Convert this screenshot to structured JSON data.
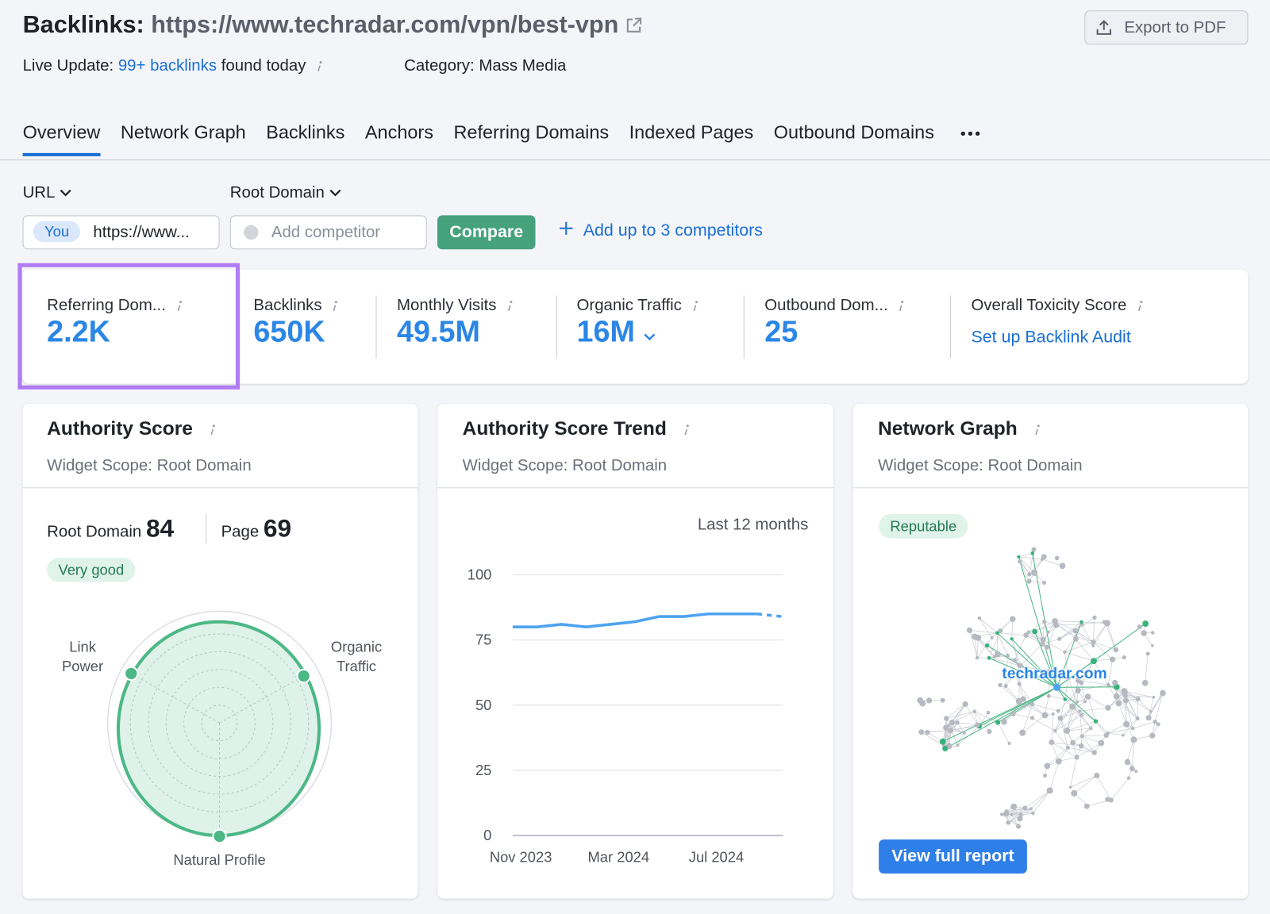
{
  "header": {
    "title": "Backlinks:",
    "url": "https://www.techradar.com/vpn/best-vpn",
    "export_button": "Export to PDF"
  },
  "live_update": {
    "label": "Live Update:",
    "link": "99+ backlinks",
    "text": "found today",
    "category": "Category: Mass Media"
  },
  "tabs": [
    "Overview",
    "Network Graph",
    "Backlinks",
    "Anchors",
    "Referring Domains",
    "Indexed Pages",
    "Outbound Domains"
  ],
  "filters": {
    "url_dropdown": "URL",
    "domain_dropdown": "Root Domain",
    "you_badge": "You",
    "you_url": "https://www...",
    "competitor_placeholder": "Add competitor",
    "compare_button": "Compare",
    "add_competitors": "Add up to 3 competitors"
  },
  "metrics": [
    {
      "label": "Referring Dom...",
      "value": "2.2K"
    },
    {
      "label": "Backlinks",
      "value": "650K"
    },
    {
      "label": "Monthly Visits",
      "value": "49.5M"
    },
    {
      "label": "Organic Traffic",
      "value": "16M"
    },
    {
      "label": "Outbound Dom...",
      "value": "25"
    },
    {
      "label": "Overall Toxicity Score",
      "link": "Set up Backlink Audit"
    }
  ],
  "authority_score": {
    "title": "Authority Score",
    "scope": "Widget Scope: Root Domain",
    "root_domain_label": "Root Domain",
    "root_domain_value": 84,
    "page_label": "Page",
    "page_value": 69,
    "rating": "Very good",
    "radar_labels": [
      "Link Power",
      "Organic Traffic",
      "Natural Profile"
    ]
  },
  "chart_data": {
    "type": "line",
    "title": "Authority Score Trend",
    "subtitle": "Widget Scope: Root Domain",
    "period": "Last 12 months",
    "categories": [
      "Nov 2023",
      null,
      null,
      null,
      "Mar 2024",
      null,
      null,
      null,
      "Jul 2024",
      null,
      null,
      null
    ],
    "values": [
      80,
      80,
      81,
      80,
      81,
      82,
      84,
      84,
      85,
      85,
      85,
      84
    ],
    "color": "#4da3f0",
    "ylim": [
      0,
      100
    ],
    "yticks": [
      0,
      25,
      50,
      75,
      100
    ],
    "grid": true
  },
  "network_graph": {
    "title": "Network Graph",
    "scope": "Widget Scope: Root Domain",
    "rating": "Reputable",
    "center_label": "techradar.com",
    "button": "View full report"
  }
}
